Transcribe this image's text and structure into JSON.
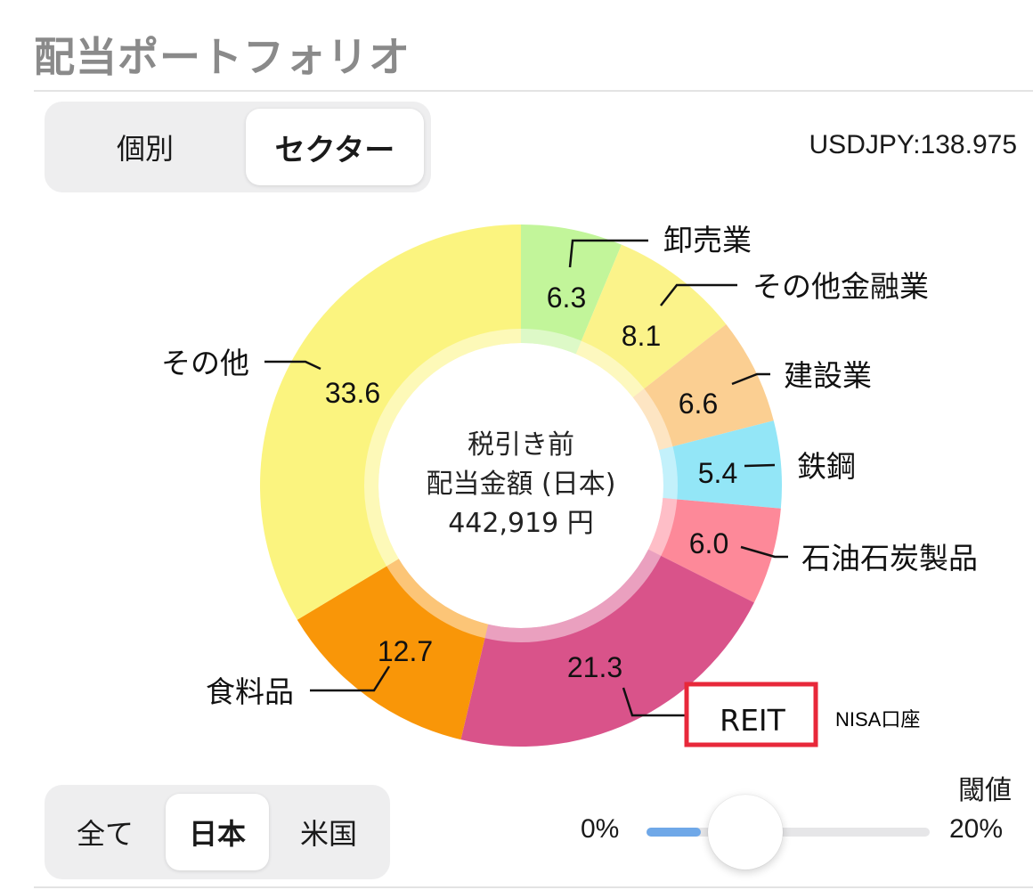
{
  "header": {
    "title": "配当ポートフォリオ"
  },
  "view_toggle": {
    "options": [
      "個別",
      "セクター"
    ],
    "selected": "セクター"
  },
  "exchange_rate": "USDJPY:138.975",
  "center": {
    "line1": "税引き前",
    "line2": "配当金額 (日本)",
    "amount": "442,919 円"
  },
  "highlight_note": "NISA口座",
  "market_toggle": {
    "options": [
      "全て",
      "日本",
      "米国"
    ],
    "selected": "日本"
  },
  "threshold": {
    "label": "閾値",
    "min_label": "0%",
    "max_label": "20%",
    "value": 0.35
  },
  "chart_data": {
    "type": "pie",
    "unit": "%",
    "slices": [
      {
        "name": "卸売業",
        "value": 6.3,
        "label": "6.3",
        "color": "#c2f59a"
      },
      {
        "name": "その他金融業",
        "value": 8.1,
        "label": "8.1",
        "color": "#fbf38a"
      },
      {
        "name": "建設業",
        "value": 6.6,
        "label": "6.6",
        "color": "#fbcf92"
      },
      {
        "name": "鉄鋼",
        "value": 5.4,
        "label": "5.4",
        "color": "#93e6f7"
      },
      {
        "name": "石油石炭製品",
        "value": 6.0,
        "label": "6.0",
        "color": "#fd8999"
      },
      {
        "name": "REIT",
        "value": 21.3,
        "label": "21.3",
        "color": "#d9538a"
      },
      {
        "name": "食料品",
        "value": 12.7,
        "label": "12.7",
        "color": "#f99608"
      },
      {
        "name": "その他",
        "value": 33.6,
        "label": "33.6",
        "color": "#fbf47f"
      }
    ]
  }
}
